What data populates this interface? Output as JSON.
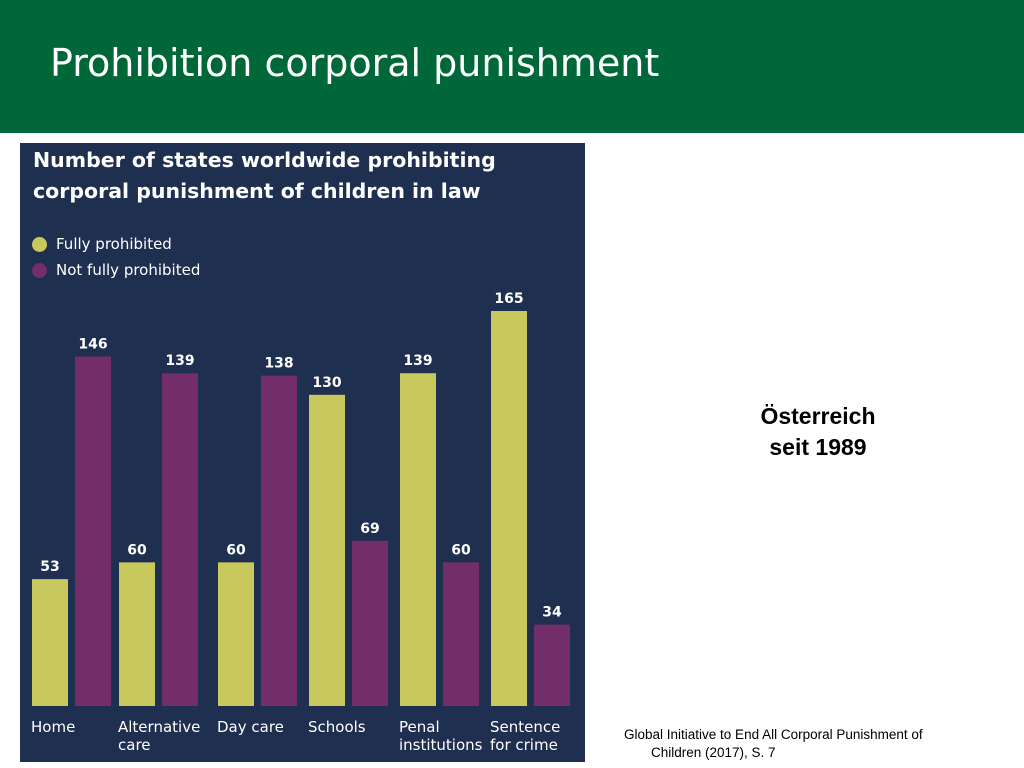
{
  "header": {
    "title": "Prohibition corporal punishment"
  },
  "side_note": {
    "line1": "Österreich",
    "line2": "seit 1989"
  },
  "source": {
    "line1": "Global Initiative to End All Corporal Punishment of",
    "line2": "Children (2017), S. 7"
  },
  "colors": {
    "header_bg": "#006838",
    "panel_bg": "#1f2f50",
    "fully": "#c8c85c",
    "not_fully": "#732d68"
  },
  "chart_data": {
    "type": "bar",
    "title": "Number of states worldwide prohibiting corporal punishment of children in law",
    "categories": [
      [
        "Home"
      ],
      [
        "Alternative",
        "care"
      ],
      [
        "Day care"
      ],
      [
        "Schools"
      ],
      [
        "Penal",
        "institutions"
      ],
      [
        "Sentence",
        "for crime"
      ]
    ],
    "series": [
      {
        "name": "Fully prohibited",
        "color": "#c8c85c",
        "values": [
          53,
          60,
          60,
          130,
          139,
          165
        ]
      },
      {
        "name": "Not fully prohibited",
        "color": "#732d68",
        "values": [
          146,
          139,
          138,
          69,
          60,
          34
        ]
      }
    ],
    "ylim": [
      0,
      165
    ],
    "grid": false,
    "legend_position": "top-left"
  }
}
